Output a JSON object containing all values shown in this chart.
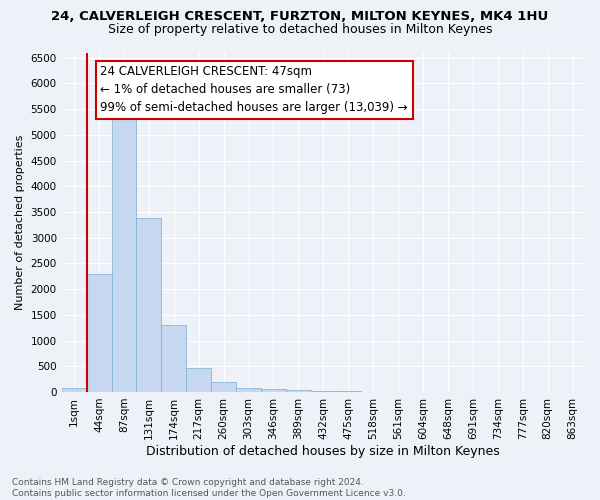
{
  "title": "24, CALVERLEIGH CRESCENT, FURZTON, MILTON KEYNES, MK4 1HU",
  "subtitle": "Size of property relative to detached houses in Milton Keynes",
  "xlabel": "Distribution of detached houses by size in Milton Keynes",
  "ylabel": "Number of detached properties",
  "footer_line1": "Contains HM Land Registry data © Crown copyright and database right 2024.",
  "footer_line2": "Contains public sector information licensed under the Open Government Licence v3.0.",
  "annotation_line1": "24 CALVERLEIGH CRESCENT: 47sqm",
  "annotation_line2": "← 1% of detached houses are smaller (73)",
  "annotation_line3": "99% of semi-detached houses are larger (13,039) →",
  "bar_labels": [
    "1sqm",
    "44sqm",
    "87sqm",
    "131sqm",
    "174sqm",
    "217sqm",
    "260sqm",
    "303sqm",
    "346sqm",
    "389sqm",
    "432sqm",
    "475sqm",
    "518sqm",
    "561sqm",
    "604sqm",
    "648sqm",
    "691sqm",
    "734sqm",
    "777sqm",
    "820sqm",
    "863sqm"
  ],
  "bar_values": [
    73,
    2300,
    5400,
    3380,
    1310,
    475,
    195,
    75,
    50,
    30,
    20,
    15,
    8,
    5,
    3,
    2,
    1,
    1,
    0,
    0,
    0
  ],
  "bar_color": "#c6d8f0",
  "bar_edge_color": "#7bacd4",
  "vline_color": "#cc0000",
  "vline_x": 0.5,
  "bg_color": "#eef2f8",
  "grid_color": "#ffffff",
  "ylim_min": 0,
  "ylim_max": 6600,
  "yticks": [
    0,
    500,
    1000,
    1500,
    2000,
    2500,
    3000,
    3500,
    4000,
    4500,
    5000,
    5500,
    6000,
    6500
  ],
  "title_fontsize": 9.5,
  "subtitle_fontsize": 9,
  "xlabel_fontsize": 9,
  "ylabel_fontsize": 8,
  "tick_fontsize": 7.5,
  "annotation_fontsize": 8.5,
  "footer_fontsize": 6.5
}
